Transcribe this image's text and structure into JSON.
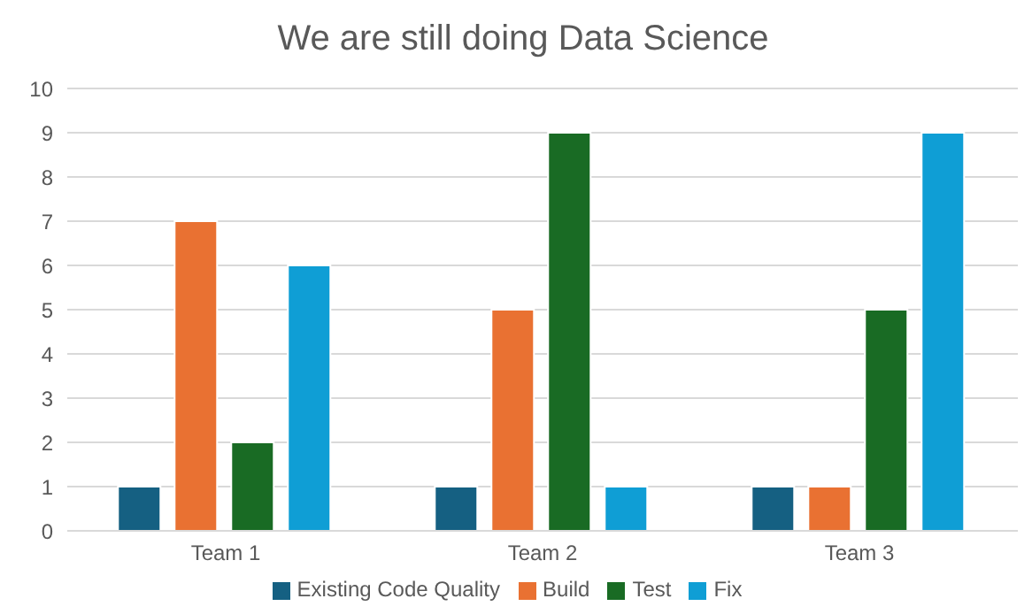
{
  "chart_data": {
    "type": "bar",
    "title": "We are still doing Data Science",
    "categories": [
      "Team 1",
      "Team 2",
      "Team 3"
    ],
    "series": [
      {
        "name": "Existing Code Quality",
        "color": "#156082",
        "values": [
          1,
          1,
          1
        ]
      },
      {
        "name": "Build",
        "color": "#e97132",
        "values": [
          7,
          5,
          1
        ]
      },
      {
        "name": "Test",
        "color": "#196b24",
        "values": [
          2,
          9,
          5
        ]
      },
      {
        "name": "Fix",
        "color": "#0f9ed5",
        "values": [
          6,
          1,
          9
        ]
      }
    ],
    "ylim": [
      0,
      10
    ],
    "yticks": [
      0,
      1,
      2,
      3,
      4,
      5,
      6,
      7,
      8,
      9,
      10
    ],
    "grid": "y",
    "legend": "bottom"
  }
}
